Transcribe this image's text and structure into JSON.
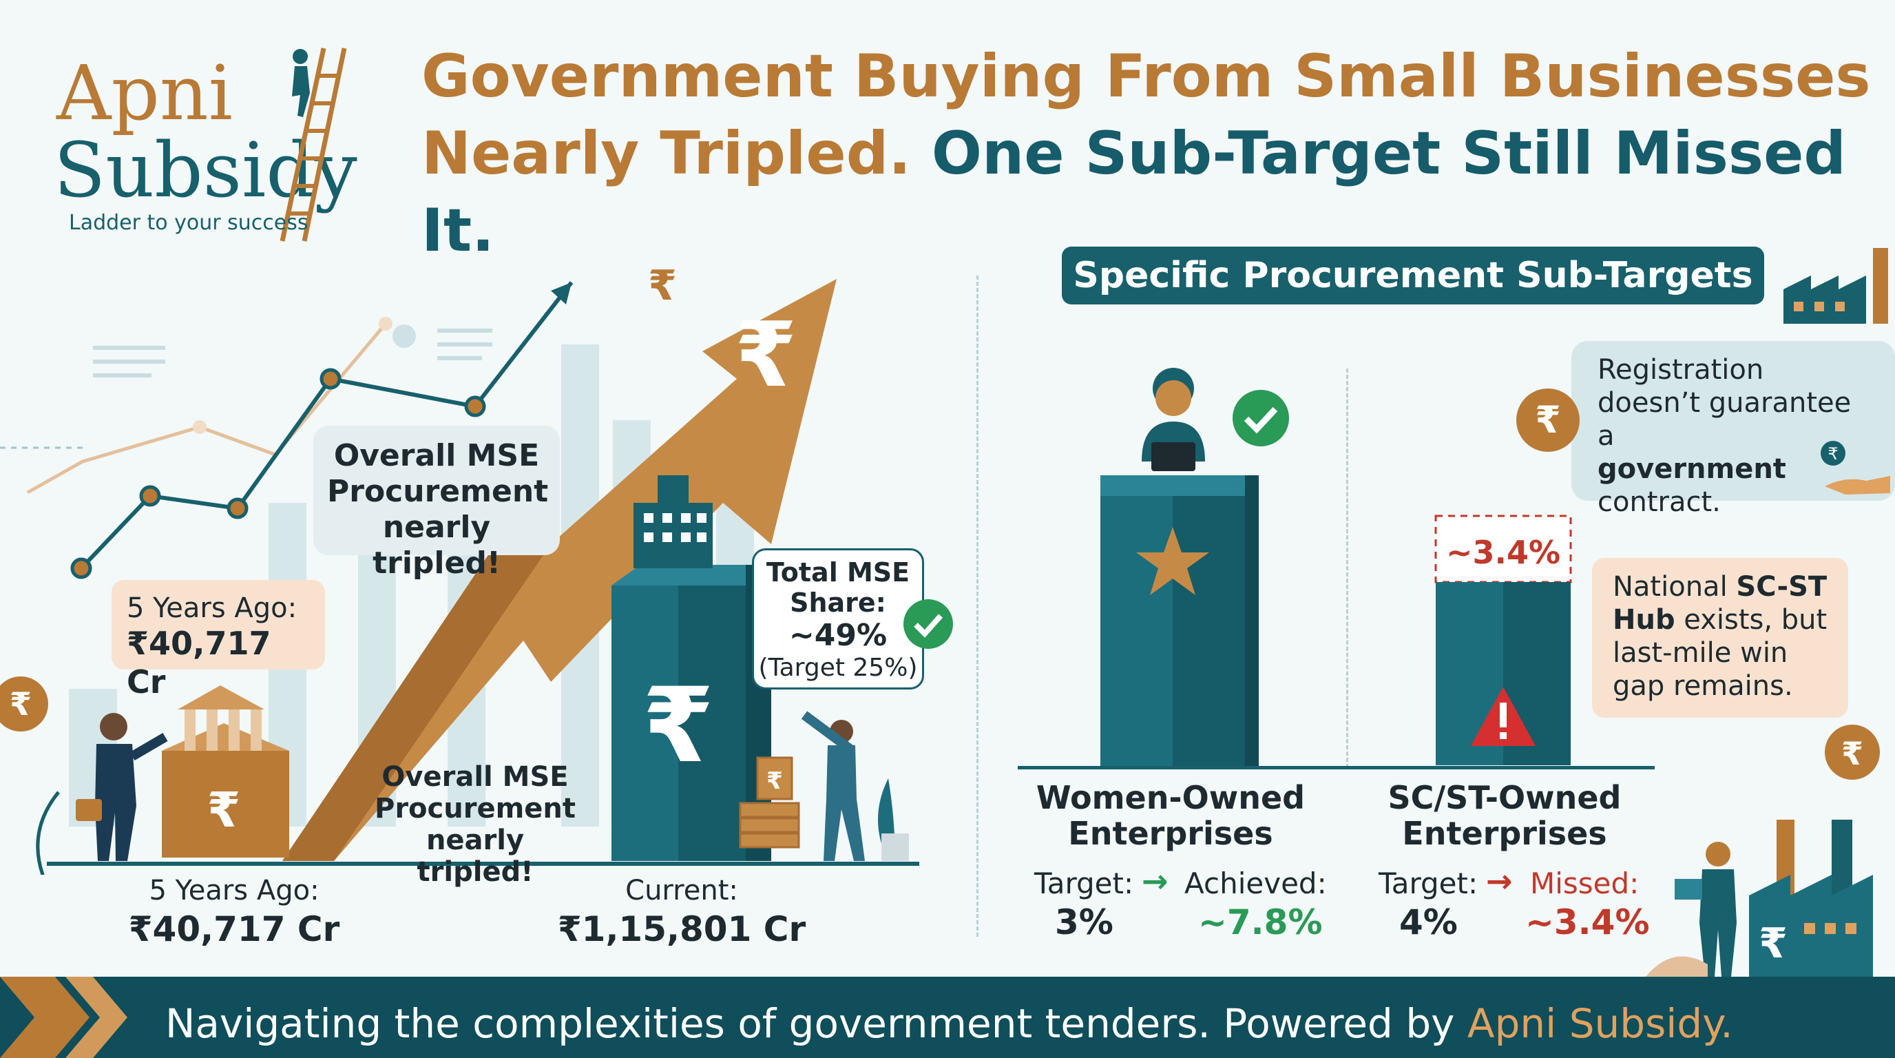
{
  "brand": {
    "logo_line1": "Apni",
    "logo_line2": "Subsidy",
    "tagline": "Ladder to your success"
  },
  "headline": {
    "part1": "Government Buying From Small Businesses",
    "part2": "Nearly Tripled.",
    "part3": "One Sub-Target Still Missed It."
  },
  "left_panel": {
    "callout_top": "Overall MSE Procurement nearly tripled!",
    "callout_bottom": "Overall MSE Procurement nearly tripled!",
    "past_bubble_label": "5 Years Ago:",
    "past_bubble_value": "₹40,717 Cr",
    "past_label": "5 Years Ago:",
    "past_value": "₹40,717 Cr",
    "current_label": "Current:",
    "current_value": "₹1,15,801 Cr",
    "share_title": "Total MSE Share:",
    "share_value": "~49%",
    "share_target": "(Target 25%)"
  },
  "right_panel": {
    "header": "Specific Procurement Sub-Targets",
    "note_top": {
      "line1": "Registration doesn’t guarantee a",
      "bold": "government",
      "line2": "contract."
    },
    "note_mid": {
      "pre": "National ",
      "bold1": "SC-ST",
      "bold2": "Hub",
      "post": " exists, but last-mile win gap remains."
    },
    "women": {
      "name": "Women-Owned Enterprises",
      "target_label": "Target:",
      "target_value": "3%",
      "result_label": "Achieved:",
      "result_value": "~7.8%"
    },
    "scst": {
      "name": "SC/ST-Owned Enterprises",
      "bar_label": "~3.4%",
      "target_label": "Target:",
      "target_value": "4%",
      "result_label": "Missed:",
      "result_value": "~3.4%"
    }
  },
  "footer": {
    "text": "Navigating the complexities of government tenders. Powered by ",
    "brand": "Apni Subsidy."
  },
  "colors": {
    "teal": "#17606c",
    "copper": "#b87a35",
    "green": "#2a9a57",
    "red": "#c0392b"
  }
}
